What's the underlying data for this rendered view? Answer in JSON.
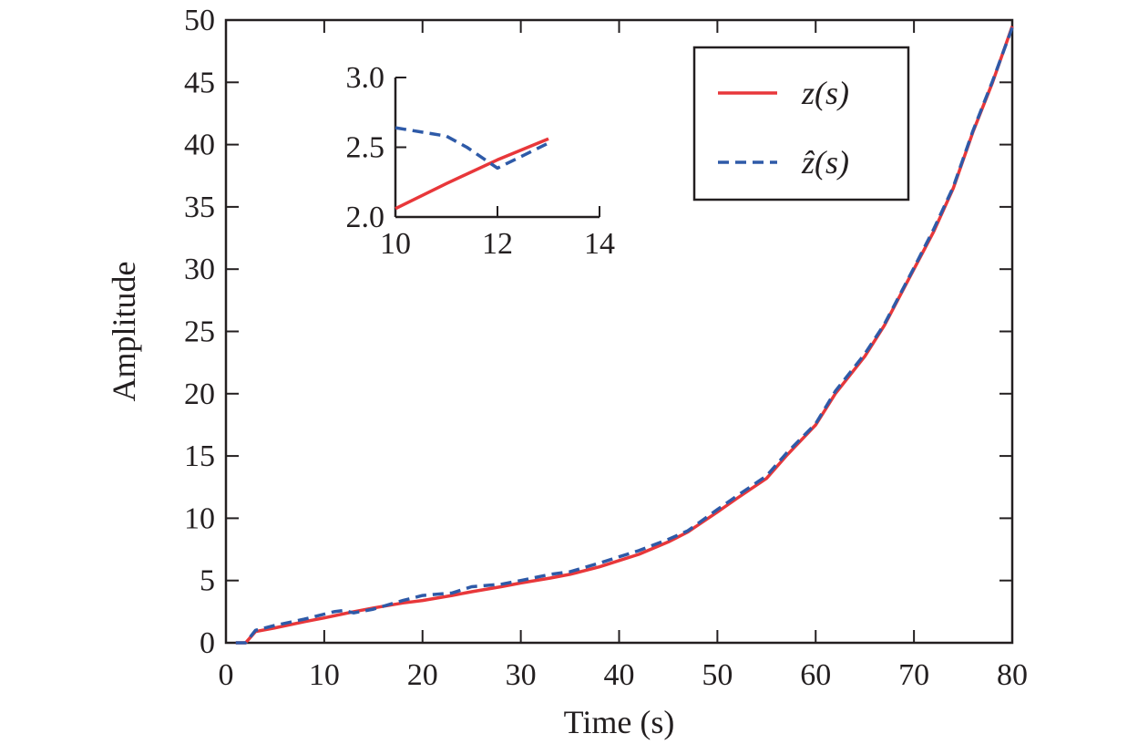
{
  "chart_data": [
    {
      "type": "line",
      "title": "",
      "xlabel": "Time (s)",
      "ylabel": "Amplitude",
      "xlim": [
        0,
        80
      ],
      "ylim": [
        0,
        50
      ],
      "xticks": [
        "0",
        "10",
        "20",
        "30",
        "40",
        "50",
        "60",
        "70",
        "80"
      ],
      "yticks": [
        "0",
        "5",
        "10",
        "15",
        "20",
        "25",
        "30",
        "35",
        "40",
        "45",
        "50"
      ],
      "grid": false,
      "legend_position": "top-right",
      "legend": [
        "z(s)",
        "ẑ(s)"
      ],
      "series": [
        {
          "name": "z(s)",
          "color": "#e8373a",
          "style": "solid",
          "x": [
            1,
            2,
            3,
            5,
            8,
            10,
            13,
            15,
            18,
            20,
            23,
            25,
            28,
            30,
            33,
            35,
            38,
            40,
            42,
            45,
            47,
            50,
            52,
            55,
            57,
            60,
            62,
            65,
            67,
            70,
            72,
            74,
            76,
            78,
            80
          ],
          "y": [
            0,
            0,
            0.9,
            1.2,
            1.7,
            2.0,
            2.5,
            2.8,
            3.2,
            3.4,
            3.8,
            4.1,
            4.5,
            4.8,
            5.2,
            5.5,
            6.1,
            6.6,
            7.1,
            8.1,
            8.9,
            10.5,
            11.6,
            13.2,
            15.0,
            17.5,
            20.0,
            23.0,
            25.5,
            30.0,
            33.0,
            36.5,
            41.0,
            45.0,
            49.5
          ]
        },
        {
          "name": "ẑ(s)",
          "color": "#2e5aa8",
          "style": "dashed",
          "x": [
            1,
            2,
            3,
            5,
            8,
            11,
            12,
            13,
            15,
            18,
            20,
            23,
            25,
            28,
            30,
            33,
            35,
            38,
            40,
            42,
            45,
            47,
            50,
            52,
            55,
            57,
            60,
            62,
            65,
            67,
            70,
            72,
            74,
            76,
            78,
            80
          ],
          "y": [
            0,
            0,
            1.0,
            1.4,
            1.9,
            2.5,
            2.6,
            2.4,
            2.7,
            3.4,
            3.8,
            4.0,
            4.5,
            4.7,
            5.0,
            5.5,
            5.7,
            6.4,
            6.9,
            7.4,
            8.3,
            9.0,
            10.7,
            11.8,
            13.4,
            15.2,
            17.6,
            20.2,
            23.2,
            25.6,
            30.1,
            33.2,
            36.6,
            41.1,
            45.1,
            49.4
          ]
        }
      ]
    },
    {
      "type": "line",
      "title": "",
      "xlabel": "",
      "ylabel": "",
      "xlim": [
        10,
        14
      ],
      "ylim": [
        2.0,
        3.0
      ],
      "xticks": [
        "10",
        "12",
        "14"
      ],
      "yticks": [
        "2.0",
        "2.5",
        "3.0"
      ],
      "series": [
        {
          "name": "z(s)",
          "color": "#e8373a",
          "style": "solid",
          "x": [
            10,
            11,
            12,
            13
          ],
          "y": [
            2.06,
            2.24,
            2.41,
            2.56
          ]
        },
        {
          "name": "ẑ(s)",
          "color": "#2e5aa8",
          "style": "dashed",
          "x": [
            10,
            11,
            11.4,
            12,
            12.5,
            13
          ],
          "y": [
            2.64,
            2.58,
            2.5,
            2.35,
            2.44,
            2.53
          ]
        }
      ]
    }
  ]
}
